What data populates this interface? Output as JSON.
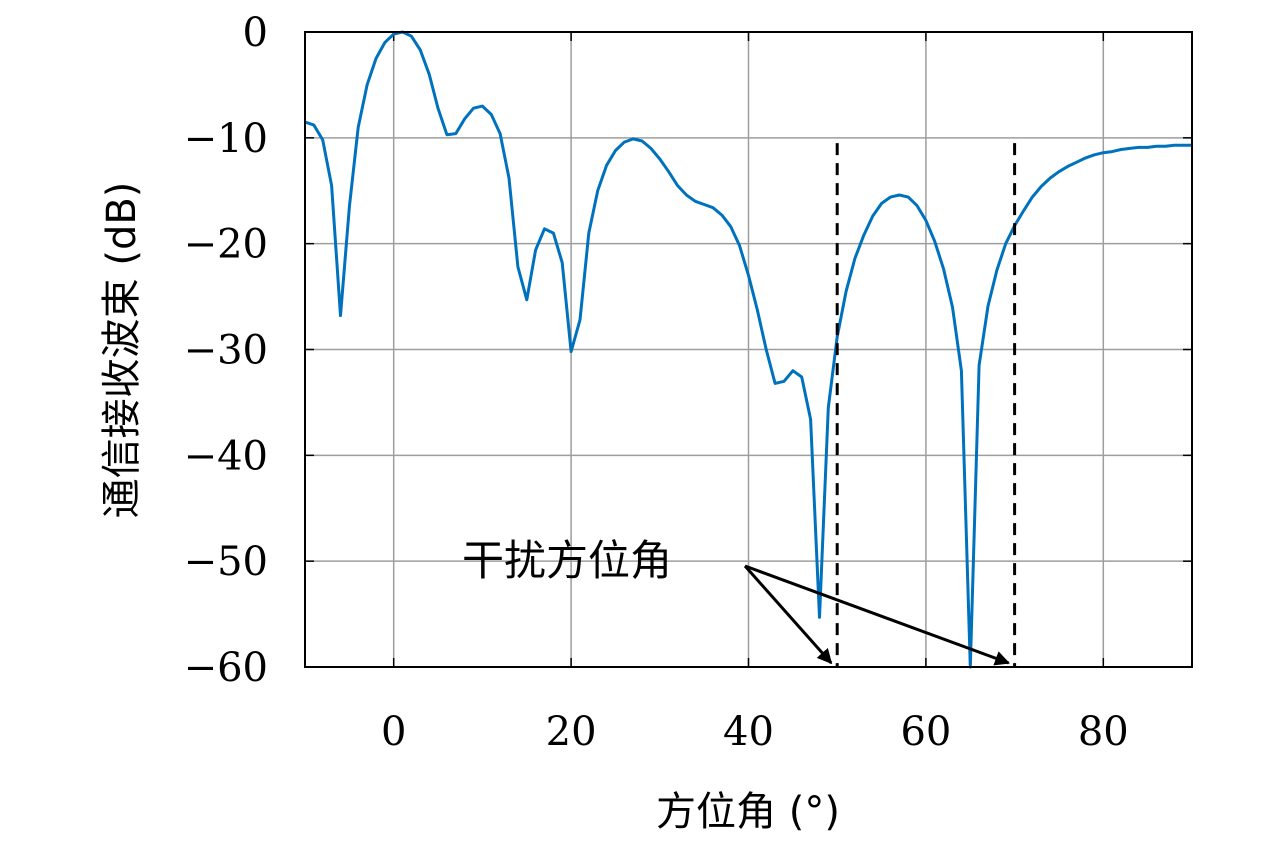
{
  "chart_data": {
    "type": "line",
    "title": "",
    "xlabel": "方位角 (°)",
    "ylabel": "通信接收波束 (dB)",
    "xlim": [
      -10,
      90
    ],
    "ylim": [
      -60,
      0
    ],
    "x_ticks": [
      0,
      20,
      40,
      60,
      80
    ],
    "x_tick_labels": [
      "0",
      "20",
      "40",
      "60",
      "80"
    ],
    "y_ticks": [
      0,
      -10,
      -20,
      -30,
      -40,
      -50,
      -60
    ],
    "y_tick_labels": [
      "0",
      "−10",
      "−20",
      "−30",
      "−40",
      "−50",
      "−60"
    ],
    "grid": true,
    "series": [
      {
        "color": "#0072BD",
        "x": [
          -10,
          -9,
          -8,
          -7,
          -6,
          -5,
          -4,
          -3,
          -2,
          -1,
          0,
          1,
          2,
          3,
          4,
          5,
          6,
          7,
          8,
          9,
          10,
          11,
          12,
          13,
          14,
          15,
          16,
          17,
          18,
          19,
          20,
          21,
          22,
          23,
          24,
          25,
          26,
          27,
          28,
          29,
          30,
          31,
          32,
          33,
          34,
          35,
          36,
          37,
          38,
          39,
          40,
          41,
          42,
          43,
          44,
          45,
          46,
          47,
          48,
          49,
          50,
          51,
          52,
          53,
          54,
          55,
          56,
          57,
          58,
          59,
          60,
          61,
          62,
          63,
          64,
          65,
          66,
          67,
          68,
          69,
          70,
          71,
          72,
          73,
          74,
          75,
          76,
          77,
          78,
          79,
          80,
          81,
          82,
          83,
          84,
          85,
          86,
          87,
          88,
          89,
          90
        ],
        "y": [
          -8.5,
          -8.8,
          -10.2,
          -14.5,
          -26.8,
          -16.5,
          -9.0,
          -5.0,
          -2.5,
          -1.0,
          -0.2,
          0.0,
          -0.4,
          -1.7,
          -4.0,
          -7.2,
          -9.7,
          -9.6,
          -8.2,
          -7.2,
          -7.0,
          -7.8,
          -9.6,
          -13.8,
          -22.2,
          -25.3,
          -20.6,
          -18.6,
          -19.0,
          -21.8,
          -30.2,
          -27.2,
          -19.0,
          -15.0,
          -12.6,
          -11.2,
          -10.4,
          -10.1,
          -10.3,
          -11.0,
          -12.0,
          -13.2,
          -14.5,
          -15.4,
          -16.0,
          -16.3,
          -16.6,
          -17.3,
          -18.4,
          -20.2,
          -23.0,
          -26.3,
          -30.0,
          -33.2,
          -33.0,
          -32.0,
          -32.6,
          -36.6,
          -55.3,
          -35.5,
          -28.8,
          -24.5,
          -21.4,
          -19.2,
          -17.4,
          -16.2,
          -15.6,
          -15.4,
          -15.6,
          -16.4,
          -17.8,
          -19.8,
          -22.4,
          -26.0,
          -32.0,
          -60.0,
          -31.5,
          -25.9,
          -22.5,
          -20.0,
          -18.3,
          -16.9,
          -15.6,
          -14.6,
          -13.8,
          -13.2,
          -12.7,
          -12.3,
          -11.9,
          -11.6,
          -11.4,
          -11.3,
          -11.1,
          -11.0,
          -10.9,
          -10.9,
          -10.8,
          -10.8,
          -10.7,
          -10.7,
          -10.7
        ]
      }
    ],
    "markers": [
      {
        "x": 50,
        "y_top": -10.5,
        "style": "dashed",
        "color": "#000000"
      },
      {
        "x": 70,
        "y_top": -10.5,
        "style": "dashed",
        "color": "#000000"
      }
    ],
    "annotation": {
      "text": "干扰方位角",
      "arrow_targets": [
        [
          50,
          -60
        ],
        [
          70,
          -60
        ]
      ]
    }
  }
}
